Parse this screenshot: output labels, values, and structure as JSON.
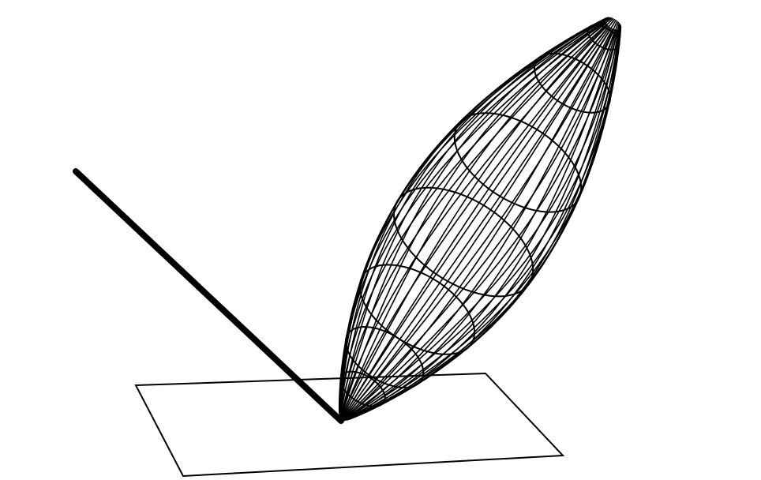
{
  "diagram": {
    "kind": "bidirectional-reflectance-lobe",
    "elements": [
      "surface-plane",
      "incident-ray",
      "reflection-lobe"
    ],
    "colors": {
      "background": "#ffffff",
      "stroke": "#000000"
    }
  }
}
